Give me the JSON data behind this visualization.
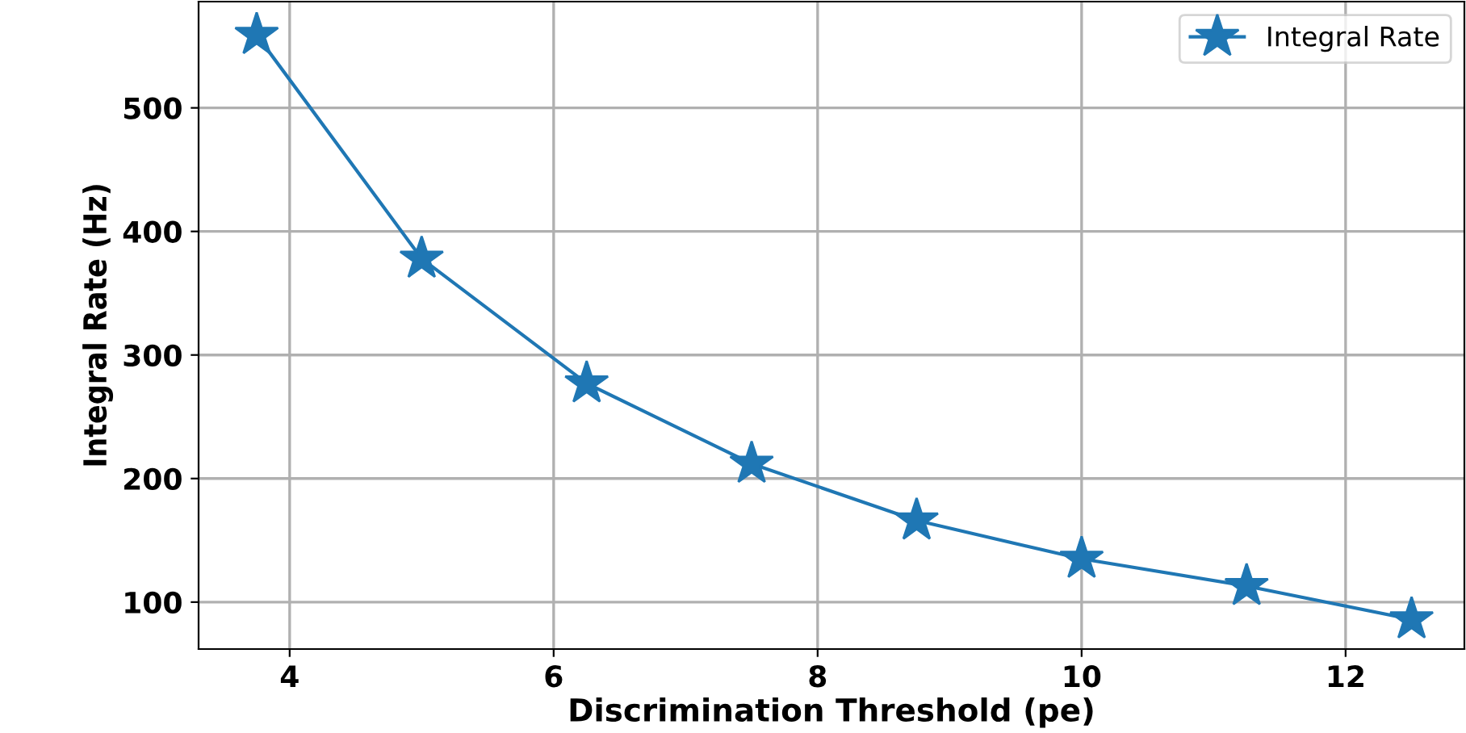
{
  "chart_data": {
    "type": "line",
    "xlabel": "Discrimination Threshold (pe)",
    "ylabel": "Integral Rate (Hz)",
    "x": [
      3.75,
      5,
      6.25,
      7.5,
      8.75,
      10,
      11.25,
      12.5
    ],
    "series": [
      {
        "name": "Integral Rate",
        "color": "#1f77b4",
        "values": [
          559,
          378,
          277,
          212,
          166,
          135,
          113,
          86
        ]
      }
    ],
    "xlim": [
      3.31,
      12.9
    ],
    "ylim": [
      62,
      586
    ],
    "xticks": [
      4,
      6,
      8,
      10,
      12
    ],
    "yticks": [
      100,
      200,
      300,
      400,
      500
    ],
    "grid": true,
    "legend": "top right",
    "marker": "star",
    "line_style": "solid"
  }
}
